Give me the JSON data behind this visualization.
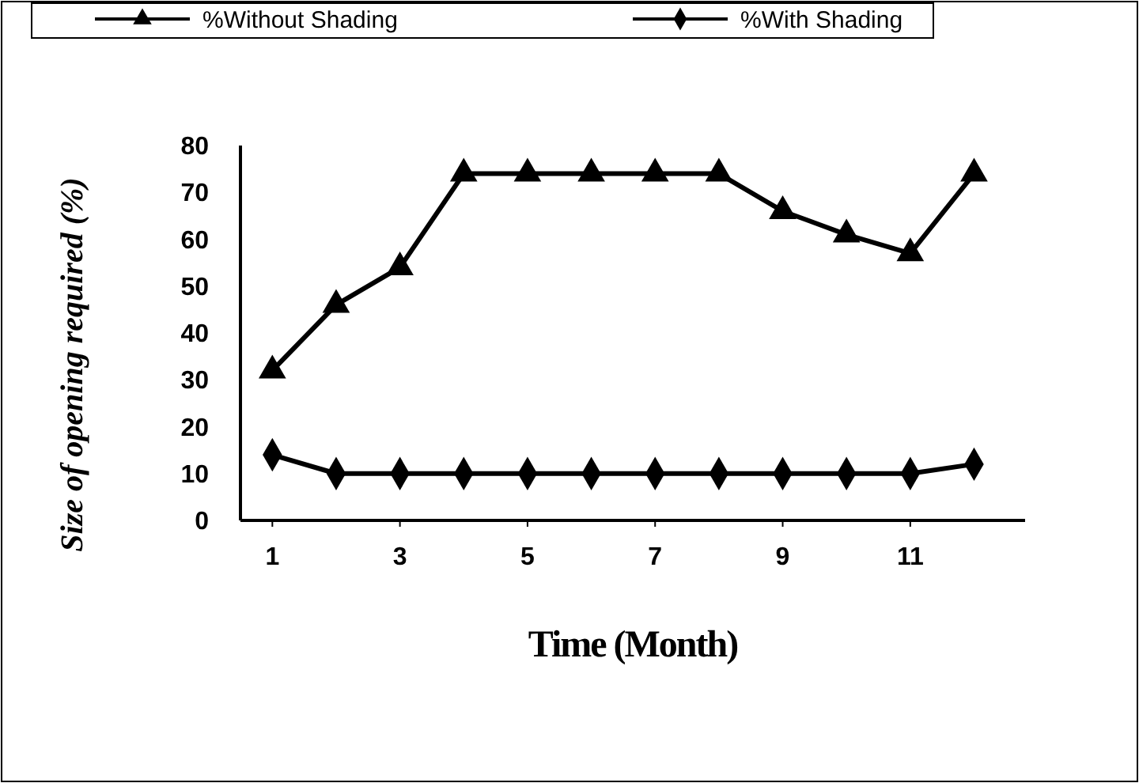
{
  "chart_data": {
    "type": "line",
    "xlabel": "Time (Month)",
    "ylabel": "Size of opening required (%)",
    "x": [
      1,
      2,
      3,
      4,
      5,
      6,
      7,
      8,
      9,
      10,
      11,
      12
    ],
    "series": [
      {
        "name": "%Without Shading",
        "color": "#000000",
        "marker": "triangle",
        "values": [
          32,
          46,
          54,
          74,
          74,
          74,
          74,
          74,
          66,
          61,
          57,
          74
        ]
      },
      {
        "name": "%With Shading",
        "color": "#000000",
        "marker": "diamond",
        "values": [
          14,
          10,
          10,
          10,
          10,
          10,
          10,
          10,
          10,
          10,
          10,
          12
        ]
      }
    ],
    "xlim": [
      0.5,
      12.8
    ],
    "xticks": [
      1,
      3,
      5,
      7,
      9,
      11
    ],
    "ylim": [
      0,
      80
    ],
    "yticks": [
      0,
      10,
      20,
      30,
      40,
      50,
      60,
      70,
      80
    ],
    "legend": "top",
    "line_style": "solid"
  }
}
